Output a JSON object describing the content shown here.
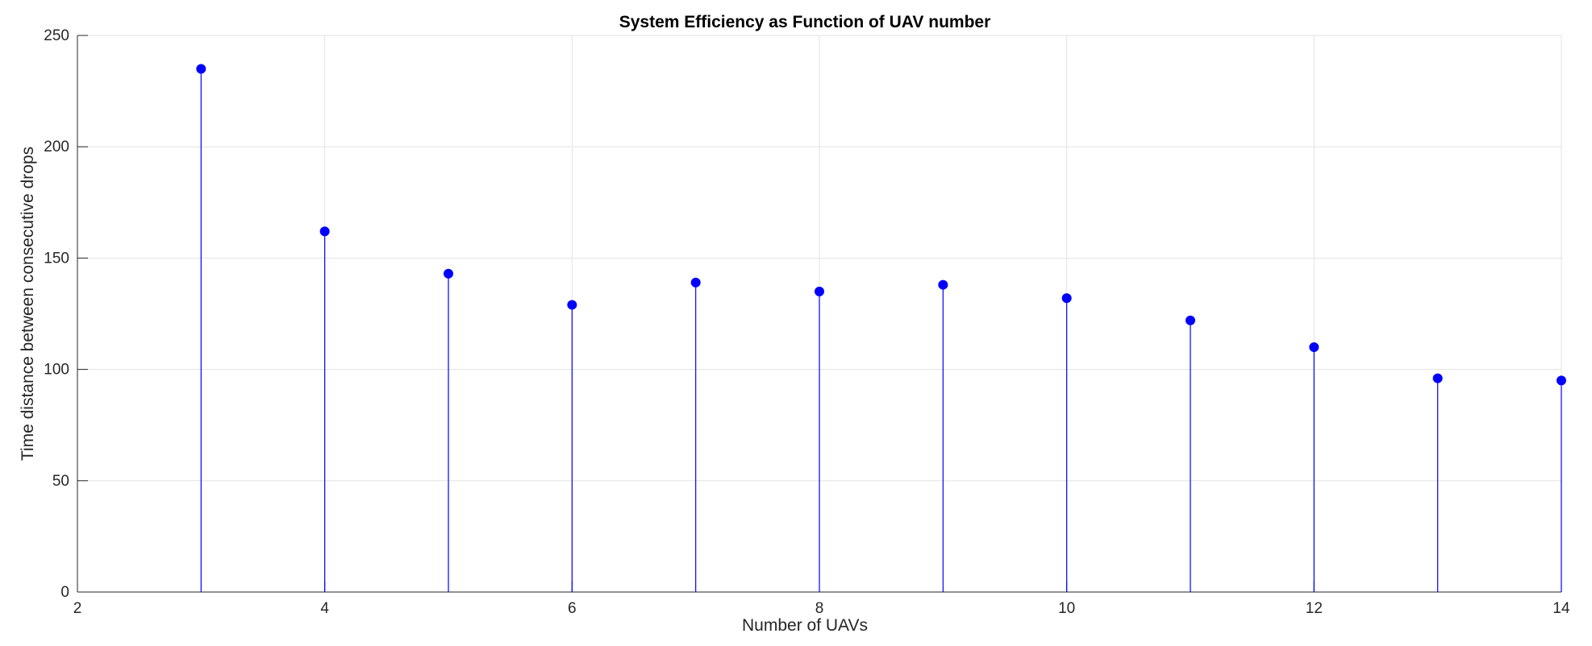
{
  "chart_data": {
    "type": "stem",
    "title": "System Efficiency as Function of UAV number",
    "xlabel": "Number of UAVs",
    "ylabel": "Time distance between consecutive drops",
    "xlim": [
      2,
      14
    ],
    "ylim": [
      0,
      250
    ],
    "xticks": [
      2,
      4,
      6,
      8,
      10,
      12,
      14
    ],
    "yticks": [
      0,
      50,
      100,
      150,
      200,
      250
    ],
    "grid": true,
    "color": "#0000ff",
    "x": [
      3,
      4,
      5,
      6,
      7,
      8,
      9,
      10,
      11,
      12,
      13,
      14
    ],
    "y": [
      235,
      162,
      143,
      129,
      139,
      135,
      138,
      132,
      122,
      110,
      96,
      95
    ]
  }
}
